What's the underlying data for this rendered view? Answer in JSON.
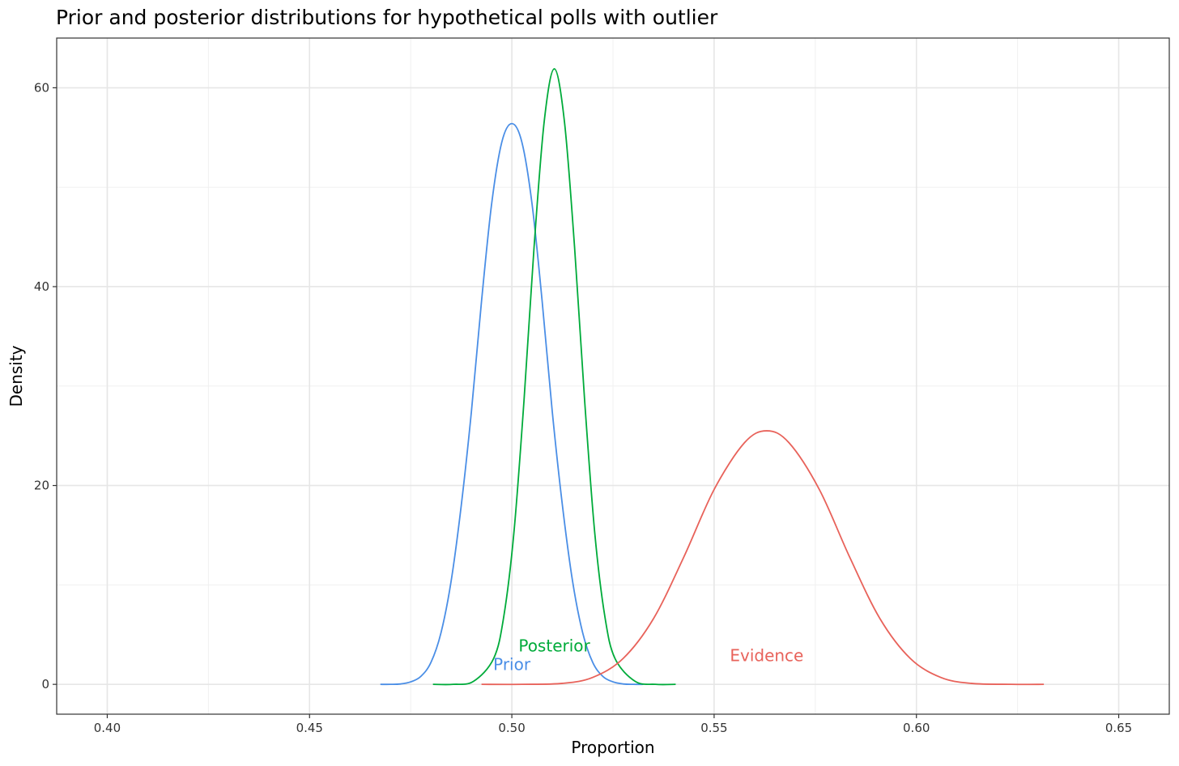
{
  "chart_data": {
    "type": "line",
    "title": "Prior and posterior distributions for hypothetical polls with outlier",
    "xlabel": "Proportion",
    "ylabel": "Density",
    "xlim": [
      0.3875,
      0.6625
    ],
    "ylim": [
      -3.0,
      65.0
    ],
    "xticks": [
      0.4,
      0.45,
      0.5,
      0.55,
      0.6,
      0.65
    ],
    "xtick_labels": [
      "0.40",
      "0.45",
      "0.50",
      "0.55",
      "0.60",
      "0.65"
    ],
    "yticks": [
      0,
      20,
      40,
      60
    ],
    "ytick_labels": [
      "0",
      "20",
      "40",
      "60"
    ],
    "grid": true,
    "legend": "none",
    "series": [
      {
        "name": "Prior",
        "color": "#4a8ee6",
        "label_x": 0.5,
        "label_y": 2.0,
        "x": [
          0.4675,
          0.47,
          0.4725,
          0.475,
          0.4775,
          0.48,
          0.4825,
          0.485,
          0.4875,
          0.49,
          0.4925,
          0.495,
          0.4975,
          0.5,
          0.5025,
          0.505,
          0.5075,
          0.51,
          0.5125,
          0.515,
          0.5175,
          0.52,
          0.5225,
          0.525,
          0.5275,
          0.53,
          0.5325
        ],
        "y": [
          0.0,
          0.0,
          0.04,
          0.25,
          0.8,
          2.2,
          5.2,
          10.4,
          18.0,
          27.4,
          38.5,
          48.3,
          54.5,
          56.4,
          54.5,
          48.3,
          38.5,
          27.4,
          18.0,
          10.4,
          5.2,
          2.2,
          0.8,
          0.25,
          0.04,
          0.0,
          0.0
        ]
      },
      {
        "name": "Posterior",
        "color": "#00ab3a",
        "label_x": 0.5105,
        "label_y": 3.9,
        "x": [
          0.4805,
          0.4855,
          0.4905,
          0.4955,
          0.498,
          0.5005,
          0.503,
          0.5055,
          0.508,
          0.5105,
          0.513,
          0.5155,
          0.518,
          0.5205,
          0.523,
          0.5255,
          0.5305,
          0.5355,
          0.5405
        ],
        "y": [
          0.0,
          0.0,
          0.3,
          2.6,
          6.8,
          15.2,
          28.5,
          44.0,
          56.6,
          61.9,
          56.6,
          44.0,
          28.5,
          15.2,
          6.8,
          2.6,
          0.3,
          0.0,
          0.0
        ]
      },
      {
        "name": "Evidence",
        "color": "#e8625a",
        "label_x": 0.563,
        "label_y": 2.9,
        "x": [
          0.4925,
          0.5025,
          0.5125,
          0.52,
          0.5275,
          0.535,
          0.5425,
          0.55,
          0.5575,
          0.563,
          0.5685,
          0.576,
          0.5835,
          0.591,
          0.5985,
          0.606,
          0.6135,
          0.6235,
          0.6315
        ],
        "y": [
          0.0,
          0.0,
          0.1,
          0.7,
          2.6,
          6.6,
          12.8,
          19.6,
          24.3,
          25.5,
          24.3,
          19.6,
          12.8,
          6.6,
          2.6,
          0.7,
          0.1,
          0.0,
          0.0
        ]
      }
    ]
  }
}
